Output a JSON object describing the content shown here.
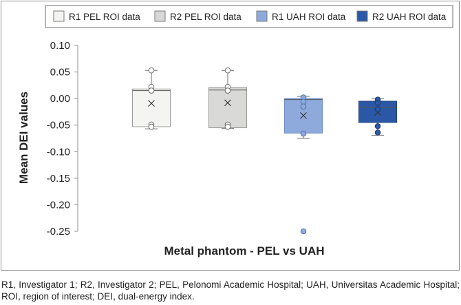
{
  "chart_data": {
    "type": "box",
    "title": "",
    "xlabel": "Metal phantom - PEL vs UAH",
    "ylabel": "Mean DEI values",
    "ylim": [
      -0.25,
      0.1
    ],
    "yticks": [
      0.1,
      0.05,
      0.0,
      -0.05,
      -0.1,
      -0.15,
      -0.2,
      -0.25
    ],
    "ytick_labels": [
      "0.10",
      "0.05",
      "0.00",
      "-0.05",
      "-0.10",
      "-0.15",
      "-0.20",
      "-0.25"
    ],
    "grid": false,
    "legend_position": "top",
    "series": [
      {
        "name": "R1 PEL ROI data",
        "fill": "#f4f5f3",
        "stroke": "#9a9a9a",
        "marker_fill": "#ffffff",
        "marker_stroke": "#6a6a6a",
        "whisker_low": -0.057,
        "q1": -0.053,
        "median": 0.015,
        "q3": 0.018,
        "whisker_high": 0.053,
        "mean": -0.009,
        "points": [
          0.053,
          0.022,
          0.015,
          -0.049,
          -0.053
        ],
        "outliers": []
      },
      {
        "name": "R2 PEL ROI data",
        "fill": "#d9d9d8",
        "stroke": "#9a9a9a",
        "marker_fill": "#ffffff",
        "marker_stroke": "#6a6a6a",
        "whisker_low": -0.056,
        "q1": -0.055,
        "median": 0.016,
        "q3": 0.021,
        "whisker_high": 0.053,
        "mean": -0.008,
        "points": [
          0.053,
          0.022,
          0.015,
          -0.049,
          -0.053
        ],
        "outliers": []
      },
      {
        "name": "R1 UAH ROI data",
        "fill": "#8eaadc",
        "stroke": "#6f8cc4",
        "marker_fill": "#8eaadc",
        "marker_stroke": "#4f6fa8",
        "whisker_low": -0.075,
        "q1": -0.065,
        "median": -0.002,
        "q3": 0.0,
        "whisker_high": 0.004,
        "mean": -0.032,
        "points": [
          0.002,
          -0.006,
          -0.015,
          -0.066
        ],
        "outliers": [
          -0.25
        ]
      },
      {
        "name": "R2 UAH ROI data",
        "fill": "#2b58a6",
        "stroke": "#1f3f7a",
        "marker_fill": "#2b58a6",
        "marker_stroke": "#1a3a72",
        "whisker_low": -0.069,
        "q1": -0.045,
        "median": -0.017,
        "q3": -0.005,
        "whisker_high": 0.0,
        "mean": -0.026,
        "points": [
          -0.002,
          -0.008,
          -0.02,
          -0.052,
          -0.064
        ],
        "outliers": []
      }
    ]
  },
  "caption": "R1, Investigator 1; R2, Investigator 2; PEL, Pelonomi Academic Hospital; UAH, Universitas Academic Hospital; ROI, region of interest; DEI, dual-energy index."
}
